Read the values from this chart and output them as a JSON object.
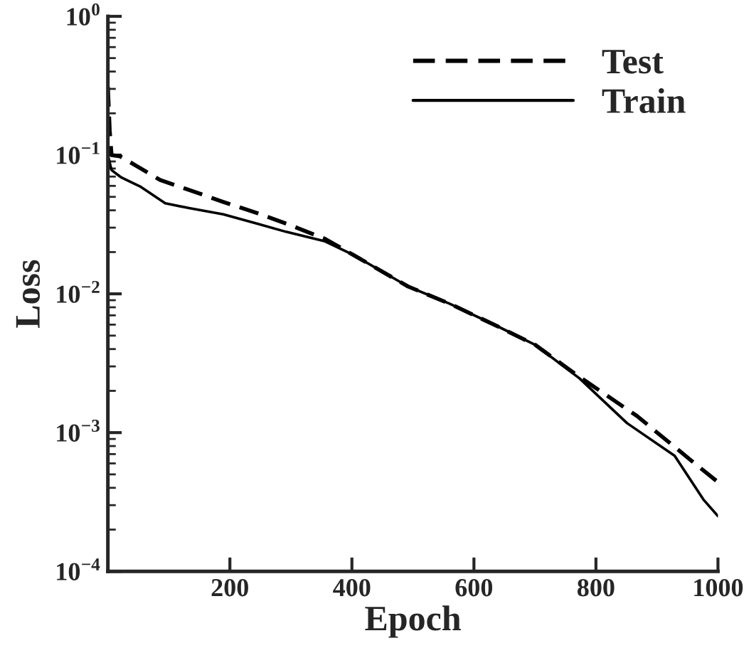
{
  "chart_data": {
    "type": "line",
    "xlabel": "Epoch",
    "ylabel": "Loss",
    "log": "y",
    "legend": "top right",
    "grid": false,
    "xlim": [
      0,
      1000
    ],
    "ylim": [
      0.0001,
      1
    ],
    "xticks": [
      200,
      400,
      600,
      800,
      1000
    ],
    "yticks": [
      {
        "value": 0.0001,
        "label": "10$^{−4}$"
      },
      {
        "value": 0.001,
        "label": "10$^{−3}$"
      },
      {
        "value": 0.01,
        "label": "10$^{−2}$"
      },
      {
        "value": 0.1,
        "label": "10$^{−1}$"
      },
      {
        "value": 1,
        "label": "10$^{0}$"
      }
    ],
    "series": [
      {
        "name": "Test",
        "color": "#000000",
        "line_style": "dashed",
        "x": [
          0,
          3,
          6,
          20,
          46,
          86,
          141,
          189,
          248,
          296,
          356,
          403,
          492,
          560,
          640,
          700,
          773,
          867,
          956,
          1000
        ],
        "values": [
          0.31,
          0.15,
          0.1,
          0.098,
          0.084,
          0.066,
          0.0546,
          0.046,
          0.0378,
          0.0316,
          0.0249,
          0.019,
          0.0113,
          0.0085,
          0.0058,
          0.0043,
          0.00252,
          0.00132,
          0.00063,
          0.00044
        ]
      },
      {
        "name": "Train",
        "color": "#000000",
        "line_style": "solid",
        "x": [
          0,
          6,
          22,
          54,
          94,
          133,
          189,
          245,
          292,
          356,
          403,
          492,
          560,
          640,
          700,
          773,
          851,
          929,
          976,
          1000
        ],
        "values": [
          0.1,
          0.078,
          0.069,
          0.059,
          0.045,
          0.0415,
          0.0374,
          0.032,
          0.028,
          0.0239,
          0.019,
          0.0113,
          0.0085,
          0.0058,
          0.0043,
          0.00246,
          0.00117,
          0.00068,
          0.00033,
          0.00025
        ]
      }
    ]
  }
}
